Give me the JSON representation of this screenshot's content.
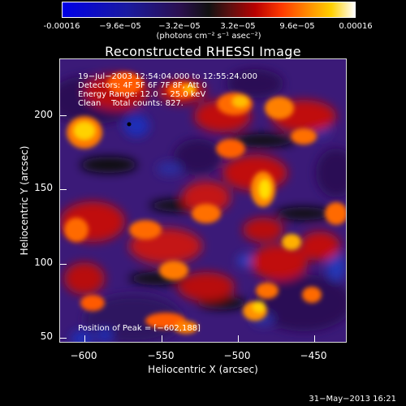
{
  "colorbar": {
    "ticks": [
      "-0.00016",
      "−9.6e−05",
      "−3.2e−05",
      "3.2e−05",
      "9.6e−05",
      "0.00016"
    ],
    "unit_label": "(photons cm⁻² s⁻¹ asec⁻²)"
  },
  "chart_data": {
    "type": "heatmap",
    "title": "Reconstructed RHESSI Image",
    "xlabel": "Heliocentric X (arcsec)",
    "ylabel": "Heliocentric Y (arcsec)",
    "xlim": [
      -615,
      -428
    ],
    "ylim": [
      45,
      228
    ],
    "x_ticks": [
      "−600",
      "−550",
      "−500",
      "−450"
    ],
    "y_ticks": [
      "50",
      "100",
      "150",
      "200"
    ],
    "color_range": [
      -0.00016,
      0.00016
    ],
    "colormap": "blue-black-red-yellow-white",
    "peak": [
      -602,
      188
    ],
    "info_lines": [
      "19−Jul−2003 12:54:04.000 to 12:55:24.000",
      "Detectors: 4F 5F 6F 7F 8F, Att 0",
      "Energy Range: 12.0 − 25.0 keV",
      "Clean    Total counts: 827."
    ],
    "peak_label": "Position of Peak = [−602,188]"
  },
  "footer": {
    "date": "31−May−2013 16:21"
  }
}
